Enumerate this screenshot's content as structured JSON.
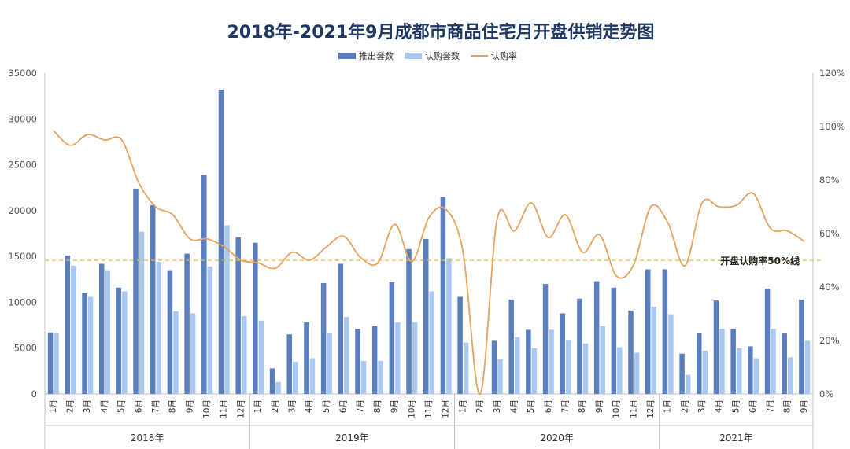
{
  "chart_data": {
    "type": "bar",
    "title": "2018年-2021年9月成都市商品住宅月开盘供销走势图",
    "legend": {
      "position": "top-center",
      "items": [
        {
          "name": "推出套数",
          "kind": "bar",
          "color": "#5b7fbe"
        },
        {
          "name": "认购套数",
          "kind": "bar",
          "color": "#a9c8f2"
        },
        {
          "name": "认购率",
          "kind": "line",
          "color": "#e6a25e"
        }
      ]
    },
    "colors": {
      "launched": "#5b7fbe",
      "subscribed": "#a9c8f2",
      "rate": "#e6a25e",
      "reference": "#f2b53a"
    },
    "y_left": {
      "min": 0,
      "max": 35000,
      "ticks": [
        "0",
        "5000",
        "10000",
        "15000",
        "20000",
        "25000",
        "30000",
        "35000"
      ]
    },
    "y_right": {
      "min": 0,
      "max": 120,
      "ticks": [
        "0%",
        "20%",
        "40%",
        "60%",
        "80%",
        "100%",
        "120%"
      ]
    },
    "grid": false,
    "years": [
      {
        "label": "2018年",
        "months": [
          "1月",
          "2月",
          "3月",
          "4月",
          "5月",
          "6月",
          "7月",
          "8月",
          "9月",
          "10月",
          "11月",
          "12月"
        ]
      },
      {
        "label": "2019年",
        "months": [
          "1月",
          "2月",
          "3月",
          "4月",
          "5月",
          "6月",
          "7月",
          "8月",
          "9月",
          "10月",
          "11月",
          "12月"
        ]
      },
      {
        "label": "2020年",
        "months": [
          "1月",
          "2月",
          "3月",
          "4月",
          "5月",
          "6月",
          "7月",
          "8月",
          "9月",
          "10月",
          "11月",
          "12月"
        ]
      },
      {
        "label": "2021年",
        "months": [
          "1月",
          "2月",
          "3月",
          "4月",
          "5月",
          "6月",
          "7月",
          "8月",
          "9月"
        ]
      }
    ],
    "series": [
      {
        "name": "推出套数",
        "type": "bar",
        "axis": "left",
        "values": [
          6700,
          15100,
          11000,
          14200,
          11600,
          22400,
          20600,
          13500,
          15300,
          23900,
          33200,
          17100,
          16500,
          2800,
          6500,
          7800,
          12100,
          14200,
          7100,
          7400,
          12200,
          15800,
          16900,
          21500,
          10600,
          0,
          5800,
          10300,
          7000,
          12000,
          8800,
          10400,
          12300,
          11600,
          9100,
          13600,
          13600,
          4400,
          6600,
          10200,
          7100,
          5200,
          11500,
          6600,
          10300
        ]
      },
      {
        "name": "认购套数",
        "type": "bar",
        "axis": "left",
        "values": [
          6600,
          14000,
          10600,
          13500,
          11200,
          17700,
          14400,
          9000,
          8800,
          13900,
          18400,
          8500,
          8000,
          1300,
          3500,
          3900,
          6600,
          8400,
          3600,
          3600,
          7800,
          7800,
          11200,
          14800,
          5600,
          0,
          3800,
          6200,
          5000,
          7000,
          5900,
          5500,
          7400,
          5100,
          4500,
          9500,
          8700,
          2100,
          4700,
          7100,
          5000,
          3900,
          7100,
          4000,
          5800
        ]
      },
      {
        "name": "认购率",
        "type": "line",
        "axis": "right",
        "values": [
          98.5,
          93,
          97,
          95,
          95,
          79,
          70,
          67,
          58,
          58,
          55,
          50,
          49,
          47,
          53,
          50,
          55,
          59,
          51,
          49,
          63.5,
          49.5,
          66,
          69,
          53,
          0,
          65.5,
          61,
          71.5,
          58.5,
          67,
          53,
          59.5,
          44,
          48.5,
          70,
          64,
          48,
          71.5,
          70,
          70.5,
          75,
          62,
          61,
          57
        ]
      }
    ],
    "annotations": [
      {
        "text": "开盘认购率50%线",
        "value": 50,
        "axis": "right",
        "style": "dashed"
      }
    ]
  }
}
